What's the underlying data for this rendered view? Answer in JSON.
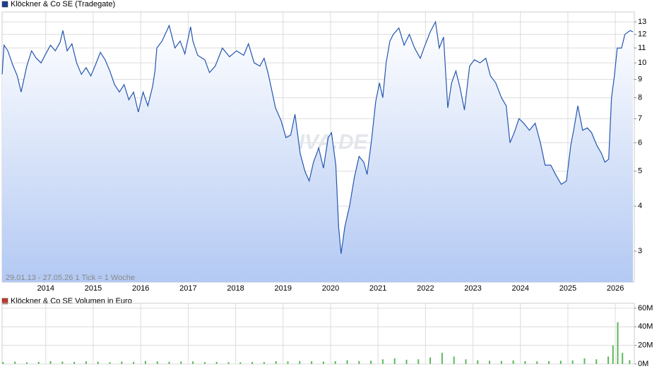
{
  "chart_data": [
    {
      "type": "line",
      "title": "Klöckner & Co SE (Tradegate)",
      "annotation": "29.01.13 - 27.05.26   1 Tick = 1 Woche",
      "watermark": "ARIVA.DE",
      "color": "#2456b0",
      "legend_color": "#1c3f94",
      "log_scale": true,
      "grid": true,
      "x": [
        2013.08,
        2013.12,
        2013.2,
        2013.3,
        2013.4,
        2013.48,
        2013.6,
        2013.7,
        2013.8,
        2013.9,
        2014.0,
        2014.1,
        2014.2,
        2014.3,
        2014.36,
        2014.45,
        2014.55,
        2014.65,
        2014.75,
        2014.85,
        2014.95,
        2015.05,
        2015.15,
        2015.25,
        2015.35,
        2015.45,
        2015.55,
        2015.65,
        2015.75,
        2015.85,
        2015.95,
        2016.05,
        2016.15,
        2016.25,
        2016.3,
        2016.34,
        2016.45,
        2016.6,
        2016.72,
        2016.83,
        2016.93,
        2017.05,
        2017.1,
        2017.2,
        2017.35,
        2017.45,
        2017.57,
        2017.72,
        2017.87,
        2018.02,
        2018.17,
        2018.27,
        2018.39,
        2018.51,
        2018.6,
        2018.69,
        2018.84,
        2018.96,
        2019.06,
        2019.16,
        2019.25,
        2019.36,
        2019.46,
        2019.55,
        2019.64,
        2019.75,
        2019.85,
        2019.95,
        2020.02,
        2020.11,
        2020.17,
        2020.22,
        2020.3,
        2020.4,
        2020.5,
        2020.6,
        2020.7,
        2020.77,
        2020.87,
        2020.95,
        2021.03,
        2021.1,
        2021.17,
        2021.25,
        2021.32,
        2021.44,
        2021.55,
        2021.66,
        2021.77,
        2021.89,
        2021.99,
        2022.1,
        2022.21,
        2022.29,
        2022.38,
        2022.47,
        2022.55,
        2022.64,
        2022.73,
        2022.82,
        2022.93,
        2023.03,
        2023.15,
        2023.27,
        2023.37,
        2023.48,
        2023.6,
        2023.7,
        2023.78,
        2023.87,
        2023.97,
        2024.07,
        2024.19,
        2024.31,
        2024.42,
        2024.52,
        2024.64,
        2024.74,
        2024.86,
        2024.97,
        2025.06,
        2025.13,
        2025.21,
        2025.31,
        2025.41,
        2025.5,
        2025.61,
        2025.71,
        2025.78,
        2025.86,
        2025.92,
        2025.98,
        2026.04,
        2026.13,
        2026.2,
        2026.31,
        2026.37
      ],
      "values": [
        9.3,
        11.2,
        10.8,
        9.9,
        9.2,
        8.3,
        9.8,
        10.8,
        10.3,
        10.0,
        10.6,
        11.2,
        10.8,
        11.4,
        12.3,
        10.8,
        11.3,
        10.0,
        9.3,
        9.7,
        9.2,
        9.9,
        10.7,
        10.2,
        9.5,
        8.7,
        8.3,
        8.7,
        7.9,
        8.3,
        7.3,
        8.3,
        7.6,
        8.6,
        9.5,
        11.0,
        11.5,
        12.7,
        11.0,
        11.5,
        10.6,
        12.6,
        11.5,
        10.5,
        10.2,
        9.4,
        9.8,
        11.0,
        10.4,
        10.8,
        10.5,
        11.3,
        10.0,
        9.8,
        10.3,
        9.3,
        7.5,
        6.9,
        6.2,
        6.3,
        7.2,
        5.6,
        5.0,
        4.7,
        5.3,
        5.8,
        5.1,
        6.2,
        6.4,
        5.2,
        3.5,
        2.95,
        3.5,
        4.0,
        4.8,
        5.5,
        5.3,
        4.9,
        6.2,
        7.8,
        8.8,
        8.0,
        10.0,
        11.5,
        12.0,
        12.5,
        11.2,
        12.0,
        11.0,
        10.3,
        11.2,
        12.2,
        13.0,
        11.0,
        11.8,
        7.5,
        8.8,
        9.5,
        8.5,
        7.4,
        9.8,
        10.2,
        10.0,
        10.3,
        9.2,
        8.8,
        8.0,
        7.6,
        6.0,
        6.4,
        7.0,
        6.8,
        6.5,
        6.8,
        6.0,
        5.2,
        5.2,
        4.9,
        4.6,
        4.7,
        5.9,
        6.6,
        7.6,
        6.5,
        6.6,
        6.4,
        5.9,
        5.6,
        5.3,
        5.4,
        8.0,
        9.2,
        11.0,
        11.0,
        12.0,
        12.3,
        12.2
      ],
      "xlim": [
        2013.08,
        2026.4
      ],
      "xticks": [
        2014,
        2015,
        2016,
        2017,
        2018,
        2019,
        2020,
        2021,
        2022,
        2023,
        2024,
        2025,
        2026
      ],
      "ylim": [
        2.46,
        13.85
      ],
      "yticks": [
        3,
        4,
        5,
        6,
        7,
        8,
        9,
        10,
        11,
        12,
        13
      ]
    },
    {
      "type": "bar",
      "title": "Klöckner & Co SE Volumen in Euro",
      "color": "#5cb85c",
      "legend_color": "#c0392b",
      "grid": true,
      "x": [
        2013.1,
        2013.35,
        2013.6,
        2013.85,
        2014.1,
        2014.35,
        2014.6,
        2014.85,
        2015.1,
        2015.35,
        2015.6,
        2015.85,
        2016.1,
        2016.35,
        2016.6,
        2016.85,
        2017.1,
        2017.35,
        2017.6,
        2017.85,
        2018.1,
        2018.35,
        2018.6,
        2018.85,
        2019.1,
        2019.35,
        2019.6,
        2019.85,
        2020.1,
        2020.35,
        2020.6,
        2020.85,
        2021.1,
        2021.35,
        2021.6,
        2021.85,
        2022.1,
        2022.35,
        2022.6,
        2022.85,
        2023.1,
        2023.35,
        2023.6,
        2023.85,
        2024.1,
        2024.35,
        2024.6,
        2024.85,
        2025.1,
        2025.35,
        2025.6,
        2025.85,
        2025.95,
        2026.05,
        2026.15,
        2026.3
      ],
      "values": [
        2000000,
        2500000,
        1800000,
        2200000,
        3000000,
        2600000,
        2200000,
        2800000,
        2500000,
        2000000,
        2600000,
        2200000,
        3200000,
        2800000,
        2400000,
        2600000,
        2800000,
        2000000,
        2200000,
        2000000,
        1800000,
        2200000,
        2000000,
        3000000,
        2800000,
        3200000,
        2800000,
        2600000,
        3000000,
        4000000,
        3200000,
        3500000,
        5000000,
        6000000,
        4500000,
        5000000,
        7000000,
        12000000,
        8000000,
        5000000,
        4000000,
        3500000,
        3200000,
        3800000,
        3000000,
        2800000,
        3000000,
        3500000,
        3800000,
        6000000,
        5000000,
        8000000,
        20000000,
        45000000,
        12000000,
        4000000
      ],
      "xlim": [
        2013.08,
        2026.4
      ],
      "xticks": [
        2014,
        2015,
        2016,
        2017,
        2018,
        2019,
        2020,
        2021,
        2022,
        2023,
        2024,
        2025,
        2026
      ],
      "ylim": [
        0,
        65300000
      ],
      "yticks": [
        {
          "value": 0,
          "label": "0M"
        },
        {
          "value": 20000000,
          "label": "20M"
        },
        {
          "value": 40000000,
          "label": "40M"
        },
        {
          "value": 60000000,
          "label": "60M"
        }
      ]
    }
  ]
}
